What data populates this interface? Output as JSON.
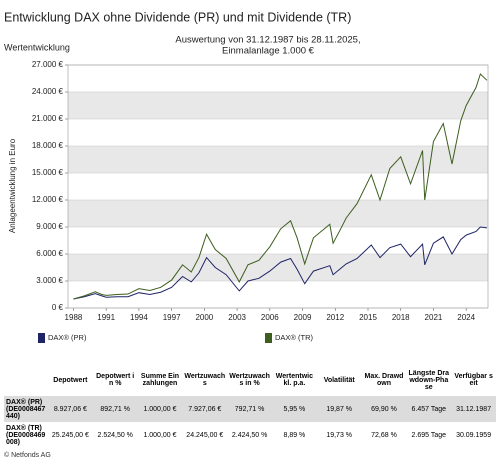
{
  "chart_data": {
    "type": "line",
    "title": "Entwicklung DAX ohne Dividende (PR) und mit Dividende (TR)",
    "section_label": "Wertentwicklung",
    "subtitle": [
      "Auswertung von 31.12.1987 bis 28.11.2025,",
      "Einmalanlage 1.000 €"
    ],
    "y_label": "Anlageentwicklung in Euro",
    "x": [
      1988,
      1989,
      1990,
      1990.6,
      1991,
      1992,
      1993,
      1994,
      1995,
      1996,
      1997,
      1998,
      1998.8,
      1999.5,
      2000.2,
      2001,
      2002,
      2003.2,
      2004,
      2005,
      2006,
      2007,
      2007.9,
      2008.5,
      2009.2,
      2010,
      2011.5,
      2011.8,
      2012.5,
      2013,
      2014,
      2015.3,
      2016.1,
      2017,
      2018,
      2018.9,
      2020,
      2020.2,
      2021,
      2021.9,
      2022.7,
      2023.5,
      2024,
      2024.9,
      2025.3,
      2025.9
    ],
    "series": [
      {
        "name": "DAX® (PR)",
        "color": "#1f2466",
        "values": [
          1000,
          1250,
          1600,
          1350,
          1200,
          1250,
          1250,
          1700,
          1500,
          1750,
          2300,
          3500,
          2900,
          3900,
          5600,
          4500,
          3700,
          1900,
          3000,
          3300,
          4100,
          5100,
          5500,
          4300,
          2700,
          4100,
          4700,
          3700,
          4400,
          4900,
          5500,
          7000,
          5600,
          6700,
          7100,
          5700,
          7100,
          4800,
          7200,
          7900,
          6000,
          7600,
          8100,
          8500,
          9000,
          8900
        ]
      },
      {
        "name": "DAX® (TR)",
        "color": "#3d5e1e",
        "values": [
          1000,
          1350,
          1800,
          1500,
          1400,
          1500,
          1550,
          2150,
          1950,
          2300,
          3100,
          4800,
          4000,
          5600,
          8200,
          6500,
          5500,
          2900,
          4800,
          5300,
          6800,
          8800,
          9700,
          7800,
          4900,
          7800,
          9300,
          7200,
          8800,
          10000,
          11600,
          14800,
          12000,
          15500,
          16800,
          13800,
          17500,
          12000,
          18500,
          20500,
          16000,
          20800,
          22500,
          24500,
          26000,
          25300
        ]
      }
    ],
    "xlim": [
      1987.5,
      2026
    ],
    "xticks": [
      1988,
      1991,
      1994,
      1997,
      2000,
      2003,
      2006,
      2009,
      2012,
      2015,
      2018,
      2021,
      2024
    ],
    "ylim": [
      0,
      27000
    ],
    "yticks": [
      {
        "value": 0,
        "label": "0 €"
      },
      {
        "value": 3000,
        "label": "3.000 €"
      },
      {
        "value": 6000,
        "label": "6.000 €"
      },
      {
        "value": 9000,
        "label": "9.000 €"
      },
      {
        "value": 12000,
        "label": "12.000 €"
      },
      {
        "value": 15000,
        "label": "15.000 €"
      },
      {
        "value": 18000,
        "label": "18.000 €"
      },
      {
        "value": 21000,
        "label": "21.000 €"
      },
      {
        "value": 24000,
        "label": "24.000 €"
      },
      {
        "value": 27000,
        "label": "27.000 €"
      }
    ],
    "grid": true
  },
  "table": {
    "header": [
      "Depotwert",
      "Depotwert in %",
      "Summe Einzahlungen",
      "Wertzuwachs",
      "Wertzuwachs in %",
      "Wertentwickl. p.a.",
      "Volatilität",
      "Max. Drawdown",
      "Längste Drawdown-Phase",
      "Verfügbar seit"
    ],
    "rows": [
      [
        "DAX® (PR) (DE0008467440)",
        "8.927,06 €",
        "892,71 %",
        "1.000,00 €",
        "7.927,06 €",
        "792,71 %",
        "5,95 %",
        "19,87 %",
        "69,90 %",
        "6.457 Tage",
        "31.12.1987"
      ],
      [
        "DAX® (TR) (DE0008469008)",
        "25.245,00 €",
        "2.524,50 %",
        "1.000,00 €",
        "24.245,00 €",
        "2.424,50 %",
        "8,89 %",
        "19,73 %",
        "72,68 %",
        "2.695 Tage",
        "30.09.1959"
      ]
    ]
  },
  "footer": "© Netfonds AG"
}
